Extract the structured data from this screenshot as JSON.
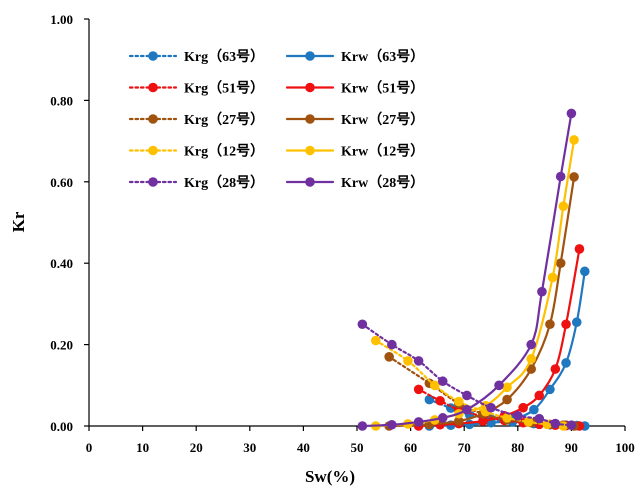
{
  "chart_data": {
    "type": "line",
    "xlabel": "Sw(%)",
    "ylabel": "Kr",
    "xlim": [
      0,
      100
    ],
    "ylim": [
      0,
      1.0
    ],
    "x_ticks": [
      "0",
      "10",
      "20",
      "30",
      "40",
      "50",
      "60",
      "70",
      "80",
      "90",
      "100"
    ],
    "y_ticks": [
      "0.00",
      "0.20",
      "0.40",
      "0.60",
      "0.80",
      "1.00"
    ],
    "grid": false,
    "legend_position": "top-left",
    "series": [
      {
        "name": "Krg（63号）",
        "sample": "63",
        "kind": "gas",
        "color": "#1f77c0",
        "style": "dotted",
        "x": [
          63.5,
          67.5,
          71,
          75,
          79,
          83,
          86,
          89,
          91,
          92.5
        ],
        "y": [
          0.065,
          0.044,
          0.028,
          0.017,
          0.01,
          0.006,
          0.003,
          0.002,
          0.001,
          0.0
        ]
      },
      {
        "name": "Krw（63号）",
        "sample": "63",
        "kind": "water",
        "color": "#1f77c0",
        "style": "solid",
        "x": [
          63.5,
          67.5,
          71,
          75,
          79,
          83,
          86,
          89,
          91,
          92.5
        ],
        "y": [
          0.0,
          0.002,
          0.004,
          0.008,
          0.015,
          0.04,
          0.09,
          0.155,
          0.255,
          0.38
        ]
      },
      {
        "name": "Krg（51号）",
        "sample": "51",
        "kind": "gas",
        "color": "#ee1111",
        "style": "dotted",
        "x": [
          61.5,
          65.5,
          69,
          73.5,
          77.5,
          81,
          84,
          87,
          89,
          91.5
        ],
        "y": [
          0.09,
          0.062,
          0.04,
          0.024,
          0.014,
          0.008,
          0.004,
          0.002,
          0.001,
          0.0
        ]
      },
      {
        "name": "Krw（51号）",
        "sample": "51",
        "kind": "water",
        "color": "#ee1111",
        "style": "solid",
        "x": [
          61.5,
          65.5,
          69,
          73.5,
          77.5,
          81,
          84,
          87,
          89,
          91.5
        ],
        "y": [
          0.0,
          0.003,
          0.006,
          0.012,
          0.025,
          0.045,
          0.075,
          0.14,
          0.25,
          0.435
        ]
      },
      {
        "name": "Krg（27号）",
        "sample": "27",
        "kind": "gas",
        "color": "#a0520f",
        "style": "dotted",
        "x": [
          56,
          63.5,
          69,
          73.5,
          78,
          82.5,
          86,
          88.5,
          90.5
        ],
        "y": [
          0.17,
          0.105,
          0.055,
          0.03,
          0.015,
          0.008,
          0.004,
          0.002,
          0.0
        ]
      },
      {
        "name": "Krw（27号）",
        "sample": "27",
        "kind": "water",
        "color": "#a0520f",
        "style": "solid",
        "x": [
          56,
          63.5,
          69,
          73.5,
          78,
          82.5,
          86,
          88,
          90.5
        ],
        "y": [
          0.0,
          0.004,
          0.012,
          0.03,
          0.065,
          0.14,
          0.25,
          0.4,
          0.612
        ]
      },
      {
        "name": "Krg（12号）",
        "sample": "12",
        "kind": "gas",
        "color": "#ffc000",
        "style": "dotted",
        "x": [
          53.5,
          59.5,
          64.5,
          69,
          74,
          78,
          82,
          85.5,
          88.5
        ],
        "y": [
          0.21,
          0.16,
          0.1,
          0.06,
          0.035,
          0.02,
          0.01,
          0.004,
          0.0
        ]
      },
      {
        "name": "Krw（12号）",
        "sample": "12",
        "kind": "water",
        "color": "#ffc000",
        "style": "solid",
        "x": [
          53.5,
          59.5,
          64.5,
          69,
          74,
          78,
          82.5,
          86.5,
          88.5,
          90.5
        ],
        "y": [
          0.0,
          0.005,
          0.015,
          0.03,
          0.05,
          0.095,
          0.165,
          0.365,
          0.54,
          0.703
        ]
      },
      {
        "name": "Krg（28号）",
        "sample": "28",
        "kind": "gas",
        "color": "#7030a0",
        "style": "dotted",
        "x": [
          51,
          56.5,
          61.5,
          66,
          70.5,
          75,
          80,
          84,
          87,
          90
        ],
        "y": [
          0.25,
          0.2,
          0.16,
          0.11,
          0.075,
          0.045,
          0.025,
          0.018,
          0.006,
          0.002
        ]
      },
      {
        "name": "Krw（28号）",
        "sample": "28",
        "kind": "water",
        "color": "#7030a0",
        "style": "solid",
        "x": [
          51,
          56.5,
          61.5,
          66,
          70.5,
          76.5,
          82.5,
          84.5,
          88,
          90
        ],
        "y": [
          0.0,
          0.003,
          0.01,
          0.02,
          0.04,
          0.1,
          0.2,
          0.33,
          0.613,
          0.768
        ]
      }
    ]
  }
}
